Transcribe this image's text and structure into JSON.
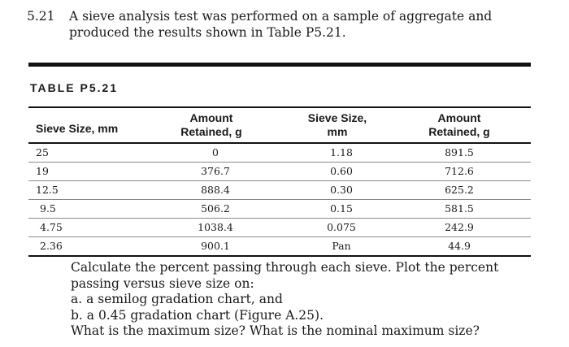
{
  "problem": {
    "number": "5.21",
    "statement": "A sieve analysis test was performed on a sample of aggregate and produced the results shown in Table P5.21."
  },
  "table": {
    "label": "TABLE P5.21",
    "headers": {
      "col1": "Sieve Size, mm",
      "col2_line1": "Amount",
      "col2_line2": "Retained, g",
      "col3_line1": "Sieve Size,",
      "col3_line2": "mm",
      "col4_line1": "Amount",
      "col4_line2": "Retained, g"
    },
    "rows": [
      {
        "sieve1": "25",
        "retained1": "0",
        "sieve2": "1.18",
        "retained2": "891.5"
      },
      {
        "sieve1": "19",
        "retained1": "376.7",
        "sieve2": "0.60",
        "retained2": "712.6"
      },
      {
        "sieve1": "12.5",
        "retained1": "888.4",
        "sieve2": "0.30",
        "retained2": "625.2"
      },
      {
        "sieve1": "9.5",
        "retained1": "506.2",
        "sieve2": "0.15",
        "retained2": "581.5"
      },
      {
        "sieve1": "4.75",
        "retained1": "1038.4",
        "sieve2": "0.075",
        "retained2": "242.9"
      },
      {
        "sieve1": "2.36",
        "retained1": "900.1",
        "sieve2": "Pan",
        "retained2": "44.9"
      }
    ]
  },
  "instructions": {
    "line1": "Calculate the percent passing through each sieve. Plot the percent passing versus sieve size on:",
    "item_a": "a.  a semilog gradation chart, and",
    "item_b": "b.  a 0.45 gradation chart (Figure A.25).",
    "question": "What is the maximum size? What is the nominal maximum size?"
  }
}
